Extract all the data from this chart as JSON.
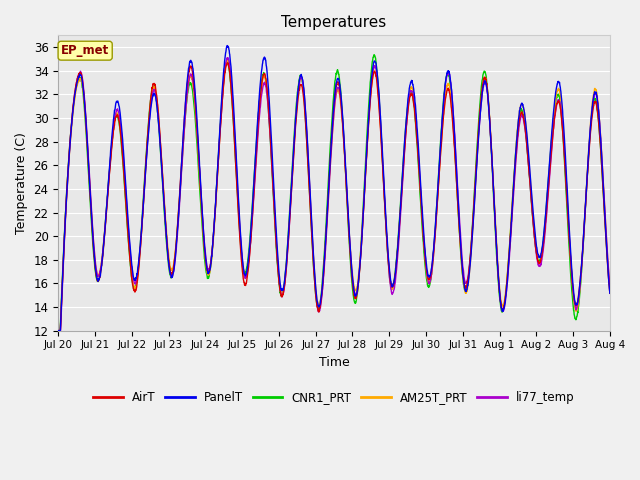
{
  "title": "Temperatures",
  "xlabel": "Time",
  "ylabel": "Temperature (C)",
  "ylim": [
    12,
    37
  ],
  "yticks": [
    12,
    14,
    16,
    18,
    20,
    22,
    24,
    26,
    28,
    30,
    32,
    34,
    36
  ],
  "fig_bg_color": "#f0f0f0",
  "plot_bg_color": "#e8e8e8",
  "grid_color": "#ffffff",
  "series_colors": {
    "AirT": "#dd0000",
    "PanelT": "#0000ee",
    "CNR1_PRT": "#00cc00",
    "AM25T_PRT": "#ffaa00",
    "li77_temp": "#aa00cc"
  },
  "line_width": 1.0,
  "annotation_text": "EP_met",
  "annotation_bg": "#ffffaa",
  "annotation_border": "#999900",
  "annotation_text_color": "#880000",
  "x_tick_labels": [
    "Jul 20",
    "Jul 21",
    "Jul 22",
    "Jul 23",
    "Jul 24",
    "Jul 25",
    "Jul 26",
    "Jul 27",
    "Jul 28",
    "Jul 29",
    "Jul 30",
    "Jul 31",
    "Aug 1",
    "Aug 2",
    "Aug 3",
    "Aug 4"
  ],
  "day_peaks": [
    33.0,
    30.5,
    32.5,
    33.5,
    34.5,
    33.0,
    33.0,
    32.5,
    34.0,
    32.0,
    33.0,
    33.0,
    30.0,
    31.5,
    31.5
  ],
  "day_mins": [
    14.0,
    16.5,
    16.0,
    17.0,
    17.0,
    16.5,
    15.0,
    14.0,
    15.0,
    15.5,
    16.0,
    15.5,
    14.0,
    18.0,
    14.0
  ],
  "n_days": 15,
  "points_per_day": 144
}
